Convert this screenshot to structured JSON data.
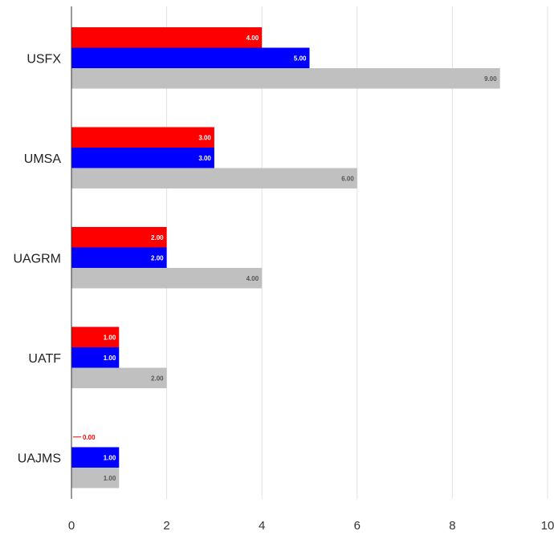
{
  "chart_data": {
    "type": "bar",
    "orientation": "horizontal",
    "categories": [
      "USFX",
      "UMSA",
      "UAGRM",
      "UATF",
      "UAJMS"
    ],
    "series": [
      {
        "values": [
          4,
          3,
          2,
          1,
          0
        ],
        "value_labels": [
          "4.00",
          "3.00",
          "2.00",
          "1.00",
          "0.00"
        ],
        "color": "#ff0000"
      },
      {
        "values": [
          5,
          3,
          2,
          1,
          1
        ],
        "value_labels": [
          "5.00",
          "3.00",
          "2.00",
          "1.00",
          "1.00"
        ],
        "color": "#0000ff"
      },
      {
        "values": [
          9,
          6,
          4,
          2,
          1
        ],
        "value_labels": [
          "9.00",
          "6.00",
          "4.00",
          "2.00",
          "1.00"
        ],
        "color": "#c0c0c0"
      }
    ],
    "x_ticks": [
      "0",
      "2",
      "4",
      "6",
      "8",
      "10"
    ],
    "xlim": [
      0,
      10
    ],
    "grid": true,
    "legend": "none",
    "title": "",
    "xlabel": "",
    "ylabel": ""
  }
}
